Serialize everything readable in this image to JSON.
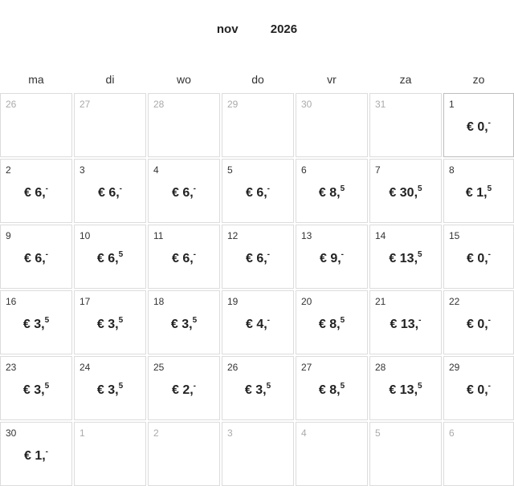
{
  "header": {
    "month": "nov",
    "year": "2026"
  },
  "weekdays": [
    "ma",
    "di",
    "wo",
    "do",
    "vr",
    "za",
    "zo"
  ],
  "days": [
    {
      "day": "26",
      "outside": true
    },
    {
      "day": "27",
      "outside": true
    },
    {
      "day": "28",
      "outside": true
    },
    {
      "day": "29",
      "outside": true
    },
    {
      "day": "30",
      "outside": true
    },
    {
      "day": "31",
      "outside": true
    },
    {
      "day": "1",
      "price": "€ 0,",
      "cents": "-",
      "selected": true
    },
    {
      "day": "2",
      "price": "€ 6,",
      "cents": "-"
    },
    {
      "day": "3",
      "price": "€ 6,",
      "cents": "-"
    },
    {
      "day": "4",
      "price": "€ 6,",
      "cents": "-"
    },
    {
      "day": "5",
      "price": "€ 6,",
      "cents": "-"
    },
    {
      "day": "6",
      "price": "€ 8,",
      "cents": "5"
    },
    {
      "day": "7",
      "price": "€ 30,",
      "cents": "5"
    },
    {
      "day": "8",
      "price": "€ 1,",
      "cents": "5"
    },
    {
      "day": "9",
      "price": "€ 6,",
      "cents": "-"
    },
    {
      "day": "10",
      "price": "€ 6,",
      "cents": "5"
    },
    {
      "day": "11",
      "price": "€ 6,",
      "cents": "-"
    },
    {
      "day": "12",
      "price": "€ 6,",
      "cents": "-"
    },
    {
      "day": "13",
      "price": "€ 9,",
      "cents": "-"
    },
    {
      "day": "14",
      "price": "€ 13,",
      "cents": "5"
    },
    {
      "day": "15",
      "price": "€ 0,",
      "cents": "-"
    },
    {
      "day": "16",
      "price": "€ 3,",
      "cents": "5"
    },
    {
      "day": "17",
      "price": "€ 3,",
      "cents": "5"
    },
    {
      "day": "18",
      "price": "€ 3,",
      "cents": "5"
    },
    {
      "day": "19",
      "price": "€ 4,",
      "cents": "-"
    },
    {
      "day": "20",
      "price": "€ 8,",
      "cents": "5"
    },
    {
      "day": "21",
      "price": "€ 13,",
      "cents": "-"
    },
    {
      "day": "22",
      "price": "€ 0,",
      "cents": "-"
    },
    {
      "day": "23",
      "price": "€ 3,",
      "cents": "5"
    },
    {
      "day": "24",
      "price": "€ 3,",
      "cents": "5"
    },
    {
      "day": "25",
      "price": "€ 2,",
      "cents": "-"
    },
    {
      "day": "26",
      "price": "€ 3,",
      "cents": "5"
    },
    {
      "day": "27",
      "price": "€ 8,",
      "cents": "5"
    },
    {
      "day": "28",
      "price": "€ 13,",
      "cents": "5"
    },
    {
      "day": "29",
      "price": "€ 0,",
      "cents": "-"
    },
    {
      "day": "30",
      "price": "€ 1,",
      "cents": "-"
    },
    {
      "day": "1",
      "outside": true
    },
    {
      "day": "2",
      "outside": true
    },
    {
      "day": "3",
      "outside": true
    },
    {
      "day": "4",
      "outside": true
    },
    {
      "day": "5",
      "outside": true
    },
    {
      "day": "6",
      "outside": true
    }
  ]
}
